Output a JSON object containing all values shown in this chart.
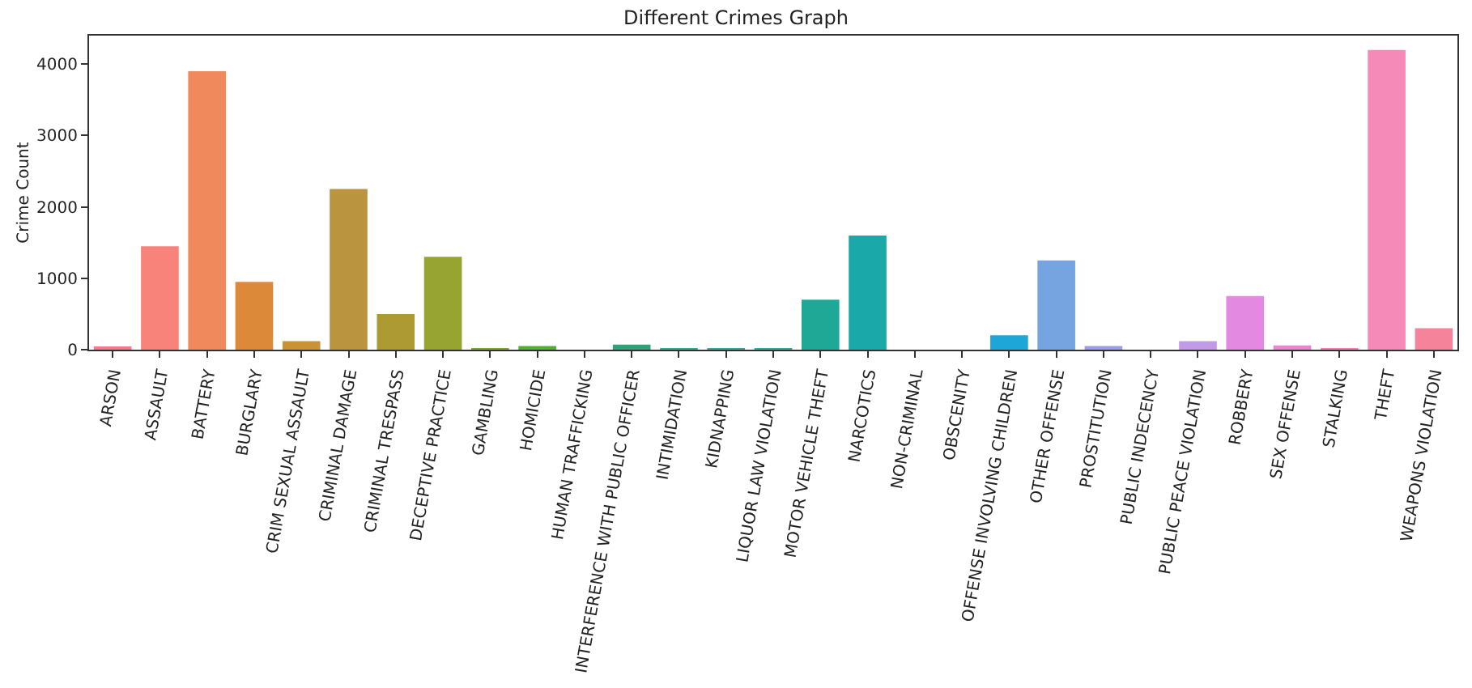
{
  "chart_data": {
    "type": "bar",
    "title": "Different Crimes Graph",
    "ylabel": "Crime Count",
    "categories": [
      "ARSON",
      "ASSAULT",
      "BATTERY",
      "BURGLARY",
      "CRIM SEXUAL ASSAULT",
      "CRIMINAL DAMAGE",
      "CRIMINAL TRESPASS",
      "DECEPTIVE PRACTICE",
      "GAMBLING",
      "HOMICIDE",
      "HUMAN TRAFFICKING",
      "INTERFERENCE WITH PUBLIC OFFICER",
      "INTIMIDATION",
      "KIDNAPPING",
      "LIQUOR LAW VIOLATION",
      "MOTOR VEHICLE THEFT",
      "NARCOTICS",
      "NON-CRIMINAL",
      "OBSCENITY",
      "OFFENSE INVOLVING CHILDREN",
      "OTHER OFFENSE",
      "PROSTITUTION",
      "PUBLIC INDECENCY",
      "PUBLIC PEACE VIOLATION",
      "ROBBERY",
      "SEX OFFENSE",
      "STALKING",
      "THEFT",
      "WEAPONS VIOLATION"
    ],
    "values": [
      30,
      1450,
      3900,
      950,
      120,
      2250,
      500,
      1300,
      10,
      50,
      0,
      70,
      20,
      20,
      20,
      700,
      1600,
      0,
      0,
      200,
      1250,
      50,
      0,
      120,
      750,
      60,
      10,
      4200,
      300
    ],
    "colors": [
      "#f37b8e",
      "#f8837a",
      "#f08a5c",
      "#dc8a3a",
      "#c99234",
      "#bb9440",
      "#ae9a33",
      "#97a431",
      "#7aab32",
      "#50b131",
      "#33b07a",
      "#2ea37a",
      "#34ae91",
      "#35ac9c",
      "#36ada4",
      "#1fa896",
      "#1aa9a8",
      "#2aa6bd",
      "#34a3ce",
      "#1fa6d8",
      "#76a4e0",
      "#9b9de9",
      "#ae9ae8",
      "#c39ae8",
      "#e389e1",
      "#ec84d0",
      "#f37fb4",
      "#f589b8",
      "#f5849a"
    ],
    "ylim": [
      0,
      4400
    ],
    "yticks": [
      0,
      1000,
      2000,
      3000,
      4000
    ],
    "grid": false
  }
}
